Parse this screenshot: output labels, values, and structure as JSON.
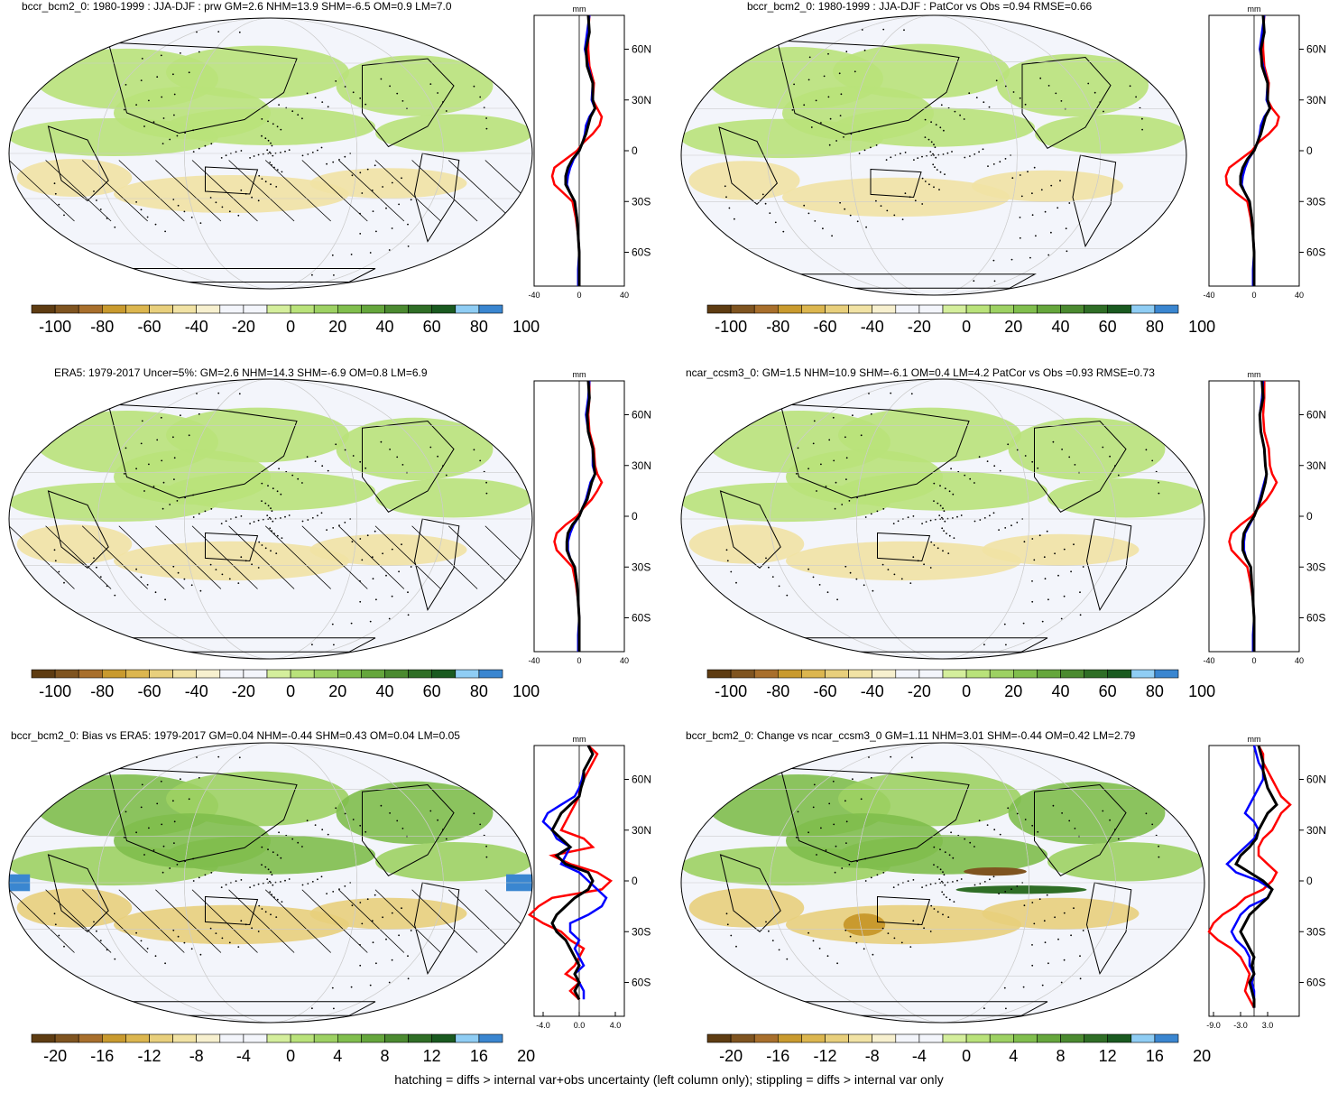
{
  "footer": "hatching = diffs > internal var+obs uncertainty (left column only); stippling = diffs > internal var only",
  "colorbar_colors": [
    "#5e3c12",
    "#7f5420",
    "#a86f2c",
    "#c99a2e",
    "#dcb64f",
    "#e8cf7c",
    "#f1e2a4",
    "#f7f0cf",
    "#f3f5fb",
    "#f3f5fb",
    "#d4ee9c",
    "#b9e27a",
    "#9dd163",
    "#80be4d",
    "#65a63c",
    "#4b8a30",
    "#2f6e26",
    "#1a5a20",
    "#8fcdf4",
    "#3a86d0"
  ],
  "profile_colors": {
    "black": "#000000",
    "red": "#ff0000",
    "blue": "#0000ff"
  },
  "chart_data": [
    {
      "type": "heatmap",
      "title": "bccr_bcm2_0: 1980-1999 : JJA-DJF : prw GM=2.6 NHM=13.9 SHM=-6.5 OM=0.9 LM=7.0",
      "colorbar_ticks": [
        "-100",
        "-80",
        "-60",
        "-40",
        "-20",
        "0",
        "20",
        "40",
        "60",
        "80",
        "100"
      ],
      "profile": {
        "unit": "mm",
        "xlim": [
          -40,
          40
        ],
        "xticks": [
          "-40",
          "0",
          "40"
        ],
        "yticks": [
          "60N",
          "30N",
          "0",
          "30S",
          "60S"
        ],
        "lat": [
          80,
          70,
          60,
          50,
          40,
          30,
          25,
          20,
          15,
          10,
          5,
          0,
          -5,
          -10,
          -15,
          -20,
          -25,
          -30,
          -40,
          -50,
          -60,
          -70,
          -80
        ],
        "black": [
          8,
          9,
          6,
          7,
          12,
          12,
          14,
          10,
          8,
          6,
          3,
          0,
          -6,
          -10,
          -12,
          -12,
          -8,
          -4,
          -2,
          -1,
          0,
          0,
          0
        ],
        "red": [
          9,
          8,
          8,
          9,
          13,
          12,
          16,
          20,
          18,
          12,
          4,
          -2,
          -12,
          -22,
          -24,
          -22,
          -14,
          -6,
          -3,
          -1,
          0,
          0,
          0
        ],
        "blue": [
          9,
          7,
          5,
          8,
          12,
          11,
          14,
          9,
          6,
          5,
          3,
          0,
          -5,
          -8,
          -10,
          -11,
          -8,
          -4,
          -2,
          -1,
          0,
          -1,
          -1
        ]
      }
    },
    {
      "type": "heatmap",
      "title": "bccr_bcm2_0: 1980-1999 : JJA-DJF : PatCor vs Obs =0.94 RMSE=0.66",
      "colorbar_ticks": [
        "-100",
        "-80",
        "-60",
        "-40",
        "-20",
        "0",
        "20",
        "40",
        "60",
        "80",
        "100"
      ],
      "profile": {
        "unit": "mm",
        "xlim": [
          -40,
          40
        ],
        "xticks": [
          "-40",
          "0",
          "40"
        ],
        "yticks": [
          "60N",
          "30N",
          "0",
          "30S",
          "60S"
        ],
        "lat": [
          80,
          70,
          60,
          50,
          40,
          30,
          25,
          20,
          15,
          10,
          5,
          0,
          -5,
          -10,
          -15,
          -20,
          -25,
          -30,
          -40,
          -50,
          -60,
          -70,
          -80
        ],
        "black": [
          8,
          9,
          6,
          7,
          12,
          12,
          14,
          10,
          8,
          6,
          3,
          0,
          -6,
          -10,
          -12,
          -12,
          -8,
          -4,
          -2,
          -1,
          0,
          0,
          0
        ],
        "red": [
          9,
          8,
          8,
          9,
          13,
          12,
          16,
          22,
          20,
          13,
          4,
          -2,
          -12,
          -22,
          -25,
          -24,
          -16,
          -6,
          -3,
          -1,
          0,
          0,
          0
        ],
        "blue": [
          9,
          7,
          5,
          8,
          12,
          11,
          14,
          9,
          6,
          5,
          3,
          0,
          -5,
          -8,
          -10,
          -11,
          -8,
          -4,
          -2,
          -1,
          0,
          -1,
          -1
        ]
      }
    },
    {
      "type": "heatmap",
      "title": "ERA5: 1979-2017 Uncer=5%: GM=2.6 NHM=14.3 SHM=-6.9 OM=0.8 LM=6.9",
      "colorbar_ticks": [
        "-100",
        "-80",
        "-60",
        "-40",
        "-20",
        "0",
        "20",
        "40",
        "60",
        "80",
        "100"
      ],
      "profile": {
        "unit": "mm",
        "xlim": [
          -40,
          40
        ],
        "xticks": [
          "-40",
          "0",
          "40"
        ],
        "yticks": [
          "60N",
          "30N",
          "0",
          "30S",
          "60S"
        ],
        "lat": [
          80,
          70,
          60,
          50,
          40,
          30,
          25,
          20,
          15,
          10,
          5,
          0,
          -5,
          -10,
          -15,
          -20,
          -25,
          -30,
          -40,
          -50,
          -60,
          -70,
          -80
        ],
        "black": [
          8,
          9,
          7,
          8,
          12,
          13,
          14,
          11,
          9,
          7,
          3,
          0,
          -6,
          -10,
          -11,
          -11,
          -8,
          -4,
          -2,
          -1,
          0,
          0,
          0
        ],
        "red": [
          9,
          9,
          8,
          9,
          13,
          14,
          16,
          20,
          16,
          11,
          4,
          -2,
          -12,
          -20,
          -22,
          -20,
          -13,
          -6,
          -3,
          -1,
          0,
          0,
          0
        ],
        "blue": [
          9,
          8,
          6,
          8,
          12,
          12,
          14,
          10,
          8,
          6,
          3,
          0,
          -5,
          -8,
          -10,
          -10,
          -8,
          -4,
          -2,
          -1,
          0,
          -1,
          -1
        ]
      }
    },
    {
      "type": "heatmap",
      "title": "ncar_ccsm3_0: GM=1.5 NHM=10.9 SHM=-6.1 OM=0.4 LM=4.2 PatCor vs Obs =0.93 RMSE=0.73",
      "colorbar_ticks": [
        "-100",
        "-80",
        "-60",
        "-40",
        "-20",
        "0",
        "20",
        "40",
        "60",
        "80",
        "100"
      ],
      "profile": {
        "unit": "mm",
        "xlim": [
          -40,
          40
        ],
        "xticks": [
          "-40",
          "0",
          "40"
        ],
        "yticks": [
          "60N",
          "30N",
          "0",
          "30S",
          "60S"
        ],
        "lat": [
          80,
          70,
          60,
          50,
          40,
          30,
          25,
          20,
          15,
          10,
          5,
          0,
          -5,
          -10,
          -15,
          -20,
          -25,
          -30,
          -40,
          -50,
          -60,
          -70,
          -80
        ],
        "black": [
          7,
          8,
          5,
          6,
          9,
          10,
          11,
          10,
          8,
          6,
          3,
          0,
          -5,
          -9,
          -10,
          -10,
          -7,
          -3,
          -2,
          -1,
          0,
          0,
          0
        ],
        "red": [
          9,
          9,
          8,
          9,
          13,
          14,
          16,
          20,
          16,
          11,
          4,
          -2,
          -12,
          -20,
          -22,
          -20,
          -13,
          -6,
          -3,
          -1,
          0,
          0,
          0
        ],
        "blue": [
          8,
          7,
          5,
          6,
          9,
          10,
          11,
          9,
          7,
          5,
          3,
          0,
          -4,
          -8,
          -9,
          -9,
          -7,
          -3,
          -2,
          -1,
          0,
          -1,
          -1
        ]
      }
    },
    {
      "type": "heatmap",
      "title": "bccr_bcm2_0: Bias vs ERA5: 1979-2017 GM=0.04 NHM=-0.44 SHM=0.43 OM=0.04 LM=0.05",
      "colorbar_ticks": [
        "-20",
        "-16",
        "-12",
        "-8",
        "-4",
        "0",
        "4",
        "8",
        "12",
        "16",
        "20"
      ],
      "profile": {
        "unit": "mm",
        "xlim": [
          -5,
          5
        ],
        "xticks": [
          "-4.0",
          "0.0",
          "4.0"
        ],
        "yticks": [
          "60N",
          "30N",
          "0",
          "30S",
          "60S"
        ],
        "lat": [
          80,
          75,
          70,
          65,
          60,
          55,
          50,
          45,
          40,
          35,
          30,
          25,
          20,
          15,
          10,
          5,
          0,
          -5,
          -10,
          -15,
          -20,
          -25,
          -30,
          -35,
          -40,
          -45,
          -50,
          -55,
          -60,
          -65,
          -70
        ],
        "black": [
          1,
          1.5,
          1,
          0.5,
          0.5,
          0.2,
          0,
          -1,
          -2,
          -2.5,
          -3,
          -2,
          -1,
          -2.5,
          -1.5,
          1,
          1.5,
          1,
          -0.5,
          -1.5,
          -2.5,
          -3,
          -2.5,
          -1.5,
          -1,
          -0.5,
          0,
          -0.5,
          0,
          -0.5,
          0
        ],
        "red": [
          1,
          2,
          1.5,
          1,
          0.5,
          0,
          0,
          -0.5,
          -1,
          -1.5,
          -2,
          0.5,
          1.5,
          -3,
          -1,
          2,
          3.5,
          2.5,
          -3,
          -4.5,
          -5.5,
          -4,
          -2,
          -1,
          0.5,
          0,
          -0.5,
          -1.5,
          0,
          -1,
          0
        ],
        "blue": [
          1,
          1.5,
          1,
          0.5,
          0.3,
          0,
          -0.5,
          -2,
          -3.5,
          -4,
          -3,
          -2.5,
          -1,
          -1.5,
          -2,
          0,
          1,
          2,
          3,
          2.5,
          1,
          -1,
          -1,
          0,
          -0.5,
          0,
          0.5,
          -0.5,
          0,
          0.5,
          0.5
        ]
      }
    },
    {
      "type": "heatmap",
      "title": "bccr_bcm2_0: Change vs ncar_ccsm3_0 GM=1.11 NHM=3.01 SHM=-0.44 OM=0.42 LM=2.79",
      "colorbar_ticks": [
        "-20",
        "-16",
        "-12",
        "-8",
        "-4",
        "0",
        "4",
        "8",
        "12",
        "16",
        "20"
      ],
      "profile": {
        "unit": "mm",
        "xlim": [
          -10,
          10
        ],
        "xticks": [
          "-9.0",
          "-3.0",
          "3.0"
        ],
        "yticks": [
          "60N",
          "30N",
          "0",
          "30S",
          "60S"
        ],
        "lat": [
          80,
          75,
          70,
          65,
          60,
          55,
          50,
          45,
          40,
          35,
          30,
          25,
          20,
          15,
          10,
          5,
          0,
          -5,
          -10,
          -15,
          -20,
          -25,
          -30,
          -35,
          -40,
          -45,
          -50,
          -55,
          -60,
          -65,
          -70,
          -75
        ],
        "black": [
          1,
          1.5,
          2,
          2,
          2.5,
          3,
          4,
          5,
          3,
          2,
          1,
          0.5,
          -1,
          -3,
          -4,
          -1,
          2,
          4,
          3,
          1,
          -1,
          -2,
          -3,
          -2,
          -1,
          0,
          -0.5,
          0,
          -1,
          -0.5,
          0,
          0
        ],
        "red": [
          1,
          2,
          2,
          3,
          4,
          5,
          6,
          8,
          6,
          5,
          4,
          2,
          1,
          1,
          3,
          5,
          4,
          2,
          -2,
          -4,
          -7,
          -9,
          -10,
          -8,
          -5,
          -3,
          -2,
          -1,
          -1.5,
          -2,
          -1,
          0
        ],
        "blue": [
          0,
          0.5,
          1,
          2,
          2,
          1,
          0,
          -1,
          -2,
          0,
          1,
          0,
          -2,
          -4,
          -6,
          -4,
          1,
          4,
          3,
          -1,
          -3,
          -4,
          -5,
          -4,
          -2,
          -1,
          -1,
          0,
          -0.5,
          0,
          0,
          0
        ]
      }
    }
  ]
}
